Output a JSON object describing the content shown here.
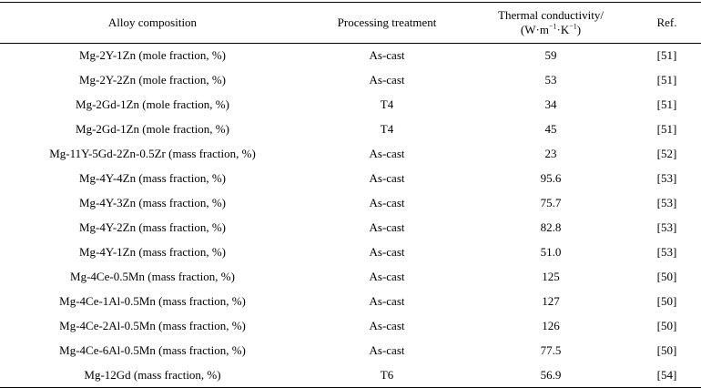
{
  "table": {
    "headers": {
      "alloy": "Alloy composition",
      "processing": "Processing treatment",
      "conductivity_line1": "Thermal conductivity/",
      "conductivity_unit_open": "(W·m",
      "conductivity_unit_exp1": "−1",
      "conductivity_unit_mid": "·K",
      "conductivity_unit_exp2": "−1",
      "conductivity_unit_close": ")",
      "ref": "Ref."
    },
    "rows": [
      {
        "alloy": "Mg-2Y-1Zn (mole fraction, %)",
        "processing": "As-cast",
        "conductivity": "59",
        "ref": "[51]"
      },
      {
        "alloy": "Mg-2Y-2Zn (mole fraction, %)",
        "processing": "As-cast",
        "conductivity": "53",
        "ref": "[51]"
      },
      {
        "alloy": "Mg-2Gd-1Zn (mole fraction, %)",
        "processing": "T4",
        "conductivity": "34",
        "ref": "[51]"
      },
      {
        "alloy": "Mg-2Gd-1Zn (mole fraction, %)",
        "processing": "T4",
        "conductivity": "45",
        "ref": "[51]"
      },
      {
        "alloy": "Mg-11Y-5Gd-2Zn-0.5Zr (mass fraction, %)",
        "processing": "As-cast",
        "conductivity": "23",
        "ref": "[52]"
      },
      {
        "alloy": "Mg-4Y-4Zn (mass fraction, %)",
        "processing": "As-cast",
        "conductivity": "95.6",
        "ref": "[53]"
      },
      {
        "alloy": "Mg-4Y-3Zn (mass fraction, %)",
        "processing": "As-cast",
        "conductivity": "75.7",
        "ref": "[53]"
      },
      {
        "alloy": "Mg-4Y-2Zn (mass fraction, %)",
        "processing": "As-cast",
        "conductivity": "82.8",
        "ref": "[53]"
      },
      {
        "alloy": "Mg-4Y-1Zn (mass fraction, %)",
        "processing": "As-cast",
        "conductivity": "51.0",
        "ref": "[53]"
      },
      {
        "alloy": "Mg-4Ce-0.5Mn (mass fraction, %)",
        "processing": "As-cast",
        "conductivity": "125",
        "ref": "[50]"
      },
      {
        "alloy": "Mg-4Ce-1Al-0.5Mn (mass fraction, %)",
        "processing": "As-cast",
        "conductivity": "127",
        "ref": "[50]"
      },
      {
        "alloy": "Mg-4Ce-2Al-0.5Mn (mass fraction, %)",
        "processing": "As-cast",
        "conductivity": "126",
        "ref": "[50]"
      },
      {
        "alloy": "Mg-4Ce-6Al-0.5Mn (mass fraction, %)",
        "processing": "As-cast",
        "conductivity": "77.5",
        "ref": "[50]"
      },
      {
        "alloy": "Mg-12Gd (mass fraction, %)",
        "processing": "T6",
        "conductivity": "56.9",
        "ref": "[54]"
      }
    ]
  }
}
